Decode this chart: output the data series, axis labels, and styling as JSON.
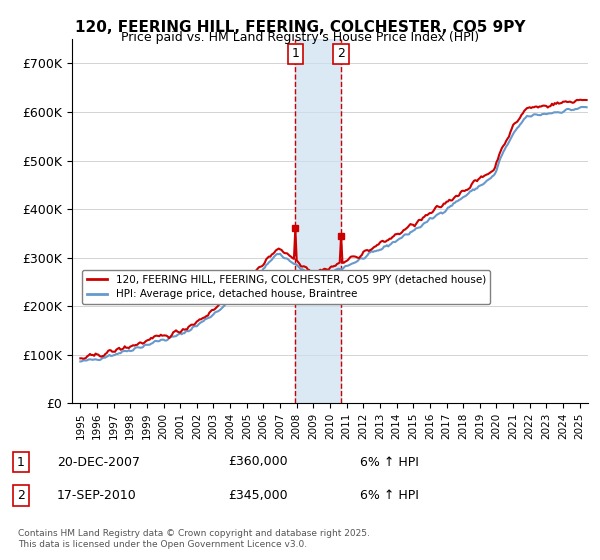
{
  "title": "120, FEERING HILL, FEERING, COLCHESTER, CO5 9PY",
  "subtitle": "Price paid vs. HM Land Registry's House Price Index (HPI)",
  "ylabel": "",
  "ylim": [
    0,
    750000
  ],
  "yticks": [
    0,
    100000,
    200000,
    300000,
    400000,
    500000,
    600000,
    700000
  ],
  "ytick_labels": [
    "£0",
    "£100K",
    "£200K",
    "£300K",
    "£400K",
    "£500K",
    "£600K",
    "£700K"
  ],
  "red_color": "#cc0000",
  "blue_color": "#6699cc",
  "shading_color": "#cce0f0",
  "marker1_date_idx": 156,
  "marker2_date_idx": 186,
  "marker1_label": "1",
  "marker2_label": "2",
  "legend1": "120, FEERING HILL, FEERING, COLCHESTER, CO5 9PY (detached house)",
  "legend2": "HPI: Average price, detached house, Braintree",
  "annotation1_date": "20-DEC-2007",
  "annotation1_price": "£360,000",
  "annotation1_hpi": "6% ↑ HPI",
  "annotation2_date": "17-SEP-2010",
  "annotation2_price": "£345,000",
  "annotation2_hpi": "6% ↑ HPI",
  "footer": "Contains HM Land Registry data © Crown copyright and database right 2025.\nThis data is licensed under the Open Government Licence v3.0.",
  "xtick_years": [
    "1995",
    "1996",
    "1997",
    "1998",
    "1999",
    "2000",
    "2001",
    "2002",
    "2003",
    "2004",
    "2005",
    "2006",
    "2007",
    "2008",
    "2009",
    "2010",
    "2011",
    "2012",
    "2013",
    "2014",
    "2015",
    "2016",
    "2017",
    "2018",
    "2019",
    "2020",
    "2021",
    "2022",
    "2023",
    "2024",
    "2025"
  ]
}
